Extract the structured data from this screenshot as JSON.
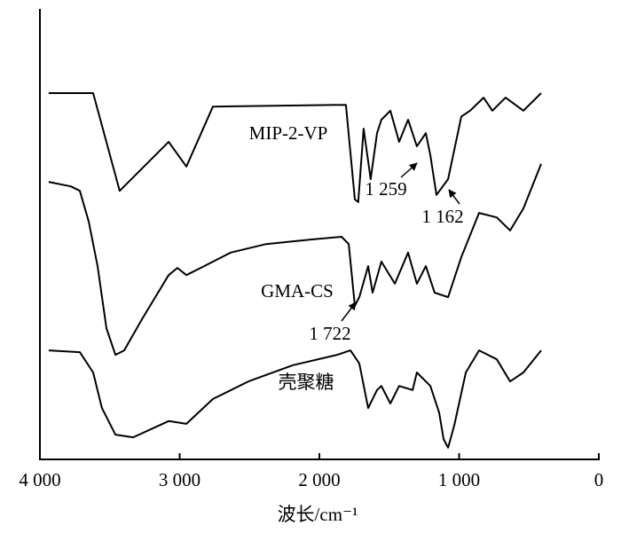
{
  "chart_data": {
    "type": "line",
    "x_label": "波长/cm⁻¹",
    "xlim": [
      4000,
      0
    ],
    "xticks": [
      {
        "value": 4000,
        "label": "4 000"
      },
      {
        "value": 3000,
        "label": "3 000"
      },
      {
        "value": 2000,
        "label": "2 000"
      },
      {
        "value": 1000,
        "label": "1 000"
      },
      0
    ],
    "ylim": [
      0,
      100
    ],
    "series": [
      {
        "name": "MIP-2-VP",
        "color": "#000000",
        "x": [
          3937,
          3619,
          3429,
          3079,
          2952,
          2762,
          1810,
          1746,
          1722,
          1683,
          1633,
          1587,
          1556,
          1492,
          1429,
          1365,
          1302,
          1238,
          1206,
          1162,
          1079,
          984,
          921,
          825,
          762,
          667,
          540,
          413
        ],
        "values": [
          81.3,
          81.3,
          59.6,
          70.5,
          65.0,
          78.3,
          78.7,
          57.7,
          57.1,
          73.4,
          62.2,
          72.4,
          75.4,
          77.4,
          70.5,
          75.4,
          69.5,
          72.4,
          67.5,
          58.7,
          62.2,
          76.1,
          77.4,
          80.3,
          77.4,
          80.3,
          77.4,
          81.3
        ]
      },
      {
        "name": "GMA-CS",
        "color": "#000000",
        "x": [
          3937,
          3778,
          3714,
          3651,
          3587,
          3524,
          3460,
          3397,
          3270,
          3079,
          3016,
          2952,
          2825,
          2635,
          2381,
          2063,
          1841,
          1790,
          1746,
          1714,
          1651,
          1619,
          1556,
          1460,
          1365,
          1302,
          1238,
          1175,
          1079,
          984,
          857,
          730,
          635,
          540,
          413
        ],
        "values": [
          61.6,
          60.6,
          59.6,
          52.8,
          42.9,
          29.1,
          23.2,
          24.2,
          31.1,
          40.9,
          42.5,
          40.9,
          42.9,
          45.9,
          47.8,
          48.8,
          49.4,
          47.8,
          34.1,
          36.0,
          42.9,
          37.0,
          43.9,
          39.0,
          45.9,
          39.0,
          42.9,
          37.0,
          36.0,
          44.9,
          54.7,
          53.7,
          50.8,
          55.7,
          65.6
        ]
      },
      {
        "name": "壳聚糖",
        "color": "#000000",
        "x": [
          3937,
          3714,
          3619,
          3556,
          3460,
          3333,
          3079,
          2952,
          2762,
          2508,
          2190,
          1873,
          1778,
          1714,
          1651,
          1587,
          1556,
          1492,
          1429,
          1333,
          1302,
          1206,
          1143,
          1111,
          1079,
          1035,
          952,
          857,
          730,
          635,
          540,
          413
        ],
        "values": [
          24.2,
          23.8,
          19.3,
          11.4,
          5.5,
          4.9,
          8.5,
          7.9,
          13.4,
          17.3,
          20.9,
          23.2,
          24.2,
          21.3,
          11.4,
          15.4,
          16.3,
          12.4,
          16.3,
          15.4,
          19.3,
          16.3,
          10.4,
          4.5,
          2.6,
          7.5,
          19.3,
          24.2,
          22.2,
          17.3,
          19.3,
          24.2
        ]
      }
    ],
    "annotations": [
      {
        "text": "1 259"
      },
      {
        "text": "1 162"
      },
      {
        "text": "1 722"
      }
    ]
  }
}
